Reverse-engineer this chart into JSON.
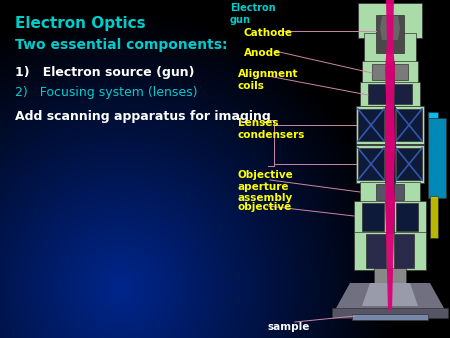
{
  "title": "Electron Optics",
  "subtitle": "Two essential components:",
  "item1": "1)   Electron source (gun)",
  "item2": "2)   Focusing system (lenses)",
  "item3": "Add scanning apparatus for imaging",
  "title_color": "#00cccc",
  "subtitle_color": "#00cccc",
  "item1_color": "#ffffff",
  "item2_color": "#00cccc",
  "item3_color": "#ffffff",
  "label_cathode": "Cathode",
  "label_anode": "Anode",
  "label_alignment": "Alignment\ncoils",
  "label_lenses": "Lenses\ncondensers",
  "label_objective_ap": "Objective\naperture\nassembly",
  "label_objective": "objective",
  "label_gun": "Electron\ngun",
  "label_sample": "sample",
  "label_color_yellow": "#ffff00",
  "label_color_cyan": "#00cccc",
  "label_color_white": "#ffffff",
  "figsize": [
    4.5,
    3.38
  ],
  "dpi": 100
}
